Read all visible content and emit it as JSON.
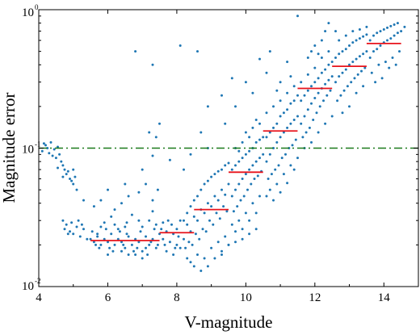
{
  "chart_data": {
    "type": "scatter",
    "xlabel": "V-magnitude",
    "ylabel": "Magnitude error",
    "xlim": [
      4,
      15
    ],
    "ylim": [
      0.01,
      1
    ],
    "yscale": "log",
    "x_ticks": [
      {
        "value": 4,
        "label": "4"
      },
      {
        "value": 6,
        "label": "6"
      },
      {
        "value": 8,
        "label": "8"
      },
      {
        "value": 10,
        "label": "10"
      },
      {
        "value": 12,
        "label": "12"
      },
      {
        "value": 14,
        "label": "14"
      }
    ],
    "y_ticks": [
      {
        "value": 1,
        "base": "10",
        "exp": "0"
      },
      {
        "value": 0.1,
        "base": "10",
        "exp": "-1"
      },
      {
        "value": 0.01,
        "base": "10",
        "exp": "-2"
      }
    ],
    "threshold_line": {
      "y": 0.1,
      "color": "#1a7a1a",
      "style": "dash-dot"
    },
    "scatter_color": "#1f77b4",
    "bin_median_color": "#e8121a",
    "bin_medians": [
      {
        "x0": 5.5,
        "x1": 7.5,
        "y": 0.0215
      },
      {
        "x0": 7.5,
        "x1": 8.5,
        "y": 0.0245
      },
      {
        "x0": 8.5,
        "x1": 9.5,
        "y": 0.036
      },
      {
        "x0": 9.5,
        "x1": 10.5,
        "y": 0.067
      },
      {
        "x0": 10.5,
        "x1": 11.5,
        "y": 0.133
      },
      {
        "x0": 11.5,
        "x1": 12.5,
        "y": 0.27
      },
      {
        "x0": 12.5,
        "x1": 13.5,
        "y": 0.39
      },
      {
        "x0": 13.5,
        "x1": 14.5,
        "y": 0.57
      }
    ],
    "points": [
      [
        4.1,
        0.095
      ],
      [
        4.2,
        0.105
      ],
      [
        4.3,
        0.092
      ],
      [
        4.35,
        0.11
      ],
      [
        4.45,
        0.098
      ],
      [
        4.5,
        0.085
      ],
      [
        4.55,
        0.102
      ],
      [
        4.6,
        0.09
      ],
      [
        4.65,
        0.08
      ],
      [
        4.7,
        0.075
      ],
      [
        4.75,
        0.07
      ],
      [
        4.8,
        0.065
      ],
      [
        4.9,
        0.06
      ],
      [
        4.95,
        0.058
      ],
      [
        5.0,
        0.055
      ],
      [
        5.05,
        0.062
      ],
      [
        5.1,
        0.05
      ],
      [
        4.4,
        0.088
      ],
      [
        4.25,
        0.1
      ],
      [
        4.15,
        0.108
      ],
      [
        4.85,
        0.068
      ],
      [
        5.0,
        0.07
      ],
      [
        4.55,
        0.072
      ],
      [
        4.7,
        0.062
      ],
      [
        4.7,
        0.03
      ],
      [
        4.75,
        0.026
      ],
      [
        4.8,
        0.028
      ],
      [
        4.9,
        0.025
      ],
      [
        5.0,
        0.024
      ],
      [
        5.1,
        0.027
      ],
      [
        5.2,
        0.023
      ],
      [
        5.3,
        0.026
      ],
      [
        5.4,
        0.022
      ],
      [
        4.85,
        0.024
      ],
      [
        5.15,
        0.03
      ],
      [
        5.25,
        0.028
      ],
      [
        4.95,
        0.029
      ],
      [
        5.5,
        0.022
      ],
      [
        5.6,
        0.021
      ],
      [
        5.7,
        0.023
      ],
      [
        5.8,
        0.02
      ],
      [
        5.9,
        0.022
      ],
      [
        6.0,
        0.021
      ],
      [
        6.1,
        0.024
      ],
      [
        6.2,
        0.02
      ],
      [
        6.3,
        0.022
      ],
      [
        6.4,
        0.021
      ],
      [
        6.5,
        0.019
      ],
      [
        6.6,
        0.023
      ],
      [
        6.7,
        0.02
      ],
      [
        6.8,
        0.022
      ],
      [
        6.9,
        0.021
      ],
      [
        7.0,
        0.018
      ],
      [
        7.1,
        0.023
      ],
      [
        7.2,
        0.02
      ],
      [
        7.3,
        0.022
      ],
      [
        7.4,
        0.019
      ],
      [
        7.5,
        0.024
      ],
      [
        5.55,
        0.025
      ],
      [
        5.75,
        0.019
      ],
      [
        5.95,
        0.026
      ],
      [
        6.15,
        0.018
      ],
      [
        6.35,
        0.025
      ],
      [
        6.55,
        0.024
      ],
      [
        6.75,
        0.018
      ],
      [
        6.95,
        0.025
      ],
      [
        7.15,
        0.017
      ],
      [
        7.35,
        0.026
      ],
      [
        5.65,
        0.02
      ],
      [
        6.05,
        0.019
      ],
      [
        6.45,
        0.02
      ],
      [
        6.85,
        0.019
      ],
      [
        7.25,
        0.021
      ],
      [
        7.45,
        0.02
      ],
      [
        6.2,
        0.028
      ],
      [
        6.5,
        0.027
      ],
      [
        6.9,
        0.03
      ],
      [
        7.2,
        0.03
      ],
      [
        5.9,
        0.029
      ],
      [
        7.4,
        0.028
      ],
      [
        6.1,
        0.032
      ],
      [
        6.7,
        0.033
      ],
      [
        7.3,
        0.035
      ],
      [
        6.3,
        0.026
      ],
      [
        6.8,
        0.017
      ],
      [
        7.0,
        0.016
      ],
      [
        6.6,
        0.017
      ],
      [
        6.0,
        0.017
      ],
      [
        5.7,
        0.024
      ],
      [
        6.4,
        0.018
      ],
      [
        7.1,
        0.019
      ],
      [
        7.0,
        0.027
      ],
      [
        6.55,
        0.029
      ],
      [
        5.8,
        0.027
      ],
      [
        7.6,
        0.022
      ],
      [
        7.7,
        0.025
      ],
      [
        7.8,
        0.021
      ],
      [
        7.9,
        0.024
      ],
      [
        8.0,
        0.026
      ],
      [
        7.65,
        0.02
      ],
      [
        7.85,
        0.028
      ],
      [
        7.95,
        0.019
      ],
      [
        8.05,
        0.023
      ],
      [
        8.1,
        0.03
      ],
      [
        7.75,
        0.03
      ],
      [
        7.55,
        0.026
      ],
      [
        8.0,
        0.02
      ],
      [
        7.9,
        0.017
      ],
      [
        7.7,
        0.018
      ],
      [
        8.1,
        0.019
      ],
      [
        7.6,
        0.029
      ],
      [
        7.5,
        0.15
      ],
      [
        7.2,
        0.13
      ],
      [
        7.4,
        0.12
      ],
      [
        7.3,
        0.088
      ],
      [
        7.0,
        0.07
      ],
      [
        6.6,
        0.045
      ],
      [
        6.4,
        0.04
      ],
      [
        7.1,
        0.055
      ],
      [
        6.5,
        0.055
      ],
      [
        6.9,
        0.048
      ],
      [
        6.0,
        0.05
      ],
      [
        5.8,
        0.042
      ],
      [
        5.3,
        0.042
      ],
      [
        5.6,
        0.038
      ],
      [
        6.2,
        0.036
      ],
      [
        7.3,
        0.042
      ],
      [
        7.45,
        0.05
      ],
      [
        8.2,
        0.022
      ],
      [
        8.3,
        0.028
      ],
      [
        8.4,
        0.025
      ],
      [
        8.5,
        0.032
      ],
      [
        8.6,
        0.03
      ],
      [
        8.7,
        0.036
      ],
      [
        8.8,
        0.034
      ],
      [
        8.9,
        0.04
      ],
      [
        9.0,
        0.038
      ],
      [
        9.1,
        0.045
      ],
      [
        9.2,
        0.042
      ],
      [
        9.3,
        0.05
      ],
      [
        9.4,
        0.046
      ],
      [
        9.5,
        0.055
      ],
      [
        8.25,
        0.019
      ],
      [
        8.35,
        0.021
      ],
      [
        8.45,
        0.02
      ],
      [
        8.55,
        0.024
      ],
      [
        8.65,
        0.022
      ],
      [
        8.75,
        0.026
      ],
      [
        8.85,
        0.025
      ],
      [
        8.95,
        0.03
      ],
      [
        9.05,
        0.028
      ],
      [
        9.15,
        0.034
      ],
      [
        9.25,
        0.031
      ],
      [
        9.35,
        0.038
      ],
      [
        9.45,
        0.035
      ],
      [
        8.2,
        0.03
      ],
      [
        8.3,
        0.034
      ],
      [
        8.4,
        0.038
      ],
      [
        8.5,
        0.042
      ],
      [
        8.6,
        0.045
      ],
      [
        8.7,
        0.05
      ],
      [
        8.8,
        0.055
      ],
      [
        8.9,
        0.058
      ],
      [
        9.0,
        0.062
      ],
      [
        9.1,
        0.065
      ],
      [
        9.2,
        0.068
      ],
      [
        9.3,
        0.07
      ],
      [
        9.4,
        0.075
      ],
      [
        9.5,
        0.078
      ],
      [
        8.4,
        0.015
      ],
      [
        8.6,
        0.017
      ],
      [
        8.8,
        0.016
      ],
      [
        9.0,
        0.019
      ],
      [
        9.2,
        0.021
      ],
      [
        9.4,
        0.023
      ],
      [
        8.5,
        0.014
      ],
      [
        8.7,
        0.013
      ],
      [
        8.9,
        0.014
      ],
      [
        9.1,
        0.016
      ],
      [
        9.3,
        0.018
      ],
      [
        9.5,
        0.02
      ],
      [
        8.3,
        0.016
      ],
      [
        9.6,
        0.045
      ],
      [
        9.7,
        0.05
      ],
      [
        9.8,
        0.055
      ],
      [
        9.9,
        0.06
      ],
      [
        10.0,
        0.065
      ],
      [
        10.1,
        0.07
      ],
      [
        10.2,
        0.075
      ],
      [
        10.3,
        0.08
      ],
      [
        10.4,
        0.085
      ],
      [
        10.5,
        0.09
      ],
      [
        9.6,
        0.07
      ],
      [
        9.7,
        0.075
      ],
      [
        9.8,
        0.08
      ],
      [
        9.9,
        0.085
      ],
      [
        10.0,
        0.09
      ],
      [
        10.1,
        0.095
      ],
      [
        10.2,
        0.1
      ],
      [
        10.3,
        0.11
      ],
      [
        10.4,
        0.115
      ],
      [
        10.5,
        0.12
      ],
      [
        9.65,
        0.035
      ],
      [
        9.75,
        0.038
      ],
      [
        9.85,
        0.042
      ],
      [
        9.95,
        0.045
      ],
      [
        10.05,
        0.05
      ],
      [
        10.15,
        0.055
      ],
      [
        10.25,
        0.06
      ],
      [
        10.35,
        0.063
      ],
      [
        10.45,
        0.068
      ],
      [
        9.6,
        0.028
      ],
      [
        9.8,
        0.03
      ],
      [
        10.0,
        0.034
      ],
      [
        10.2,
        0.04
      ],
      [
        10.4,
        0.045
      ],
      [
        9.7,
        0.025
      ],
      [
        9.9,
        0.026
      ],
      [
        10.1,
        0.03
      ],
      [
        10.3,
        0.034
      ],
      [
        10.0,
        0.13
      ],
      [
        10.2,
        0.14
      ],
      [
        10.4,
        0.15
      ],
      [
        9.9,
        0.11
      ],
      [
        9.7,
        0.1
      ],
      [
        10.3,
        0.16
      ],
      [
        10.1,
        0.12
      ],
      [
        9.8,
        0.095
      ],
      [
        9.5,
        0.02
      ],
      [
        9.7,
        0.021
      ],
      [
        9.9,
        0.022
      ],
      [
        10.1,
        0.024
      ],
      [
        10.3,
        0.026
      ],
      [
        9.3,
        0.017
      ],
      [
        10.6,
        0.08
      ],
      [
        10.7,
        0.09
      ],
      [
        10.8,
        0.1
      ],
      [
        10.9,
        0.11
      ],
      [
        11.0,
        0.12
      ],
      [
        11.1,
        0.13
      ],
      [
        11.2,
        0.14
      ],
      [
        11.3,
        0.15
      ],
      [
        11.4,
        0.16
      ],
      [
        11.5,
        0.17
      ],
      [
        10.6,
        0.12
      ],
      [
        10.7,
        0.13
      ],
      [
        10.8,
        0.14
      ],
      [
        10.9,
        0.15
      ],
      [
        11.0,
        0.17
      ],
      [
        11.1,
        0.18
      ],
      [
        11.2,
        0.19
      ],
      [
        11.3,
        0.21
      ],
      [
        11.4,
        0.22
      ],
      [
        11.5,
        0.24
      ],
      [
        10.65,
        0.06
      ],
      [
        10.75,
        0.065
      ],
      [
        10.85,
        0.07
      ],
      [
        10.95,
        0.075
      ],
      [
        11.05,
        0.085
      ],
      [
        11.15,
        0.09
      ],
      [
        11.25,
        0.1
      ],
      [
        11.35,
        0.105
      ],
      [
        11.45,
        0.115
      ],
      [
        10.6,
        0.18
      ],
      [
        10.8,
        0.2
      ],
      [
        11.0,
        0.22
      ],
      [
        11.2,
        0.25
      ],
      [
        11.4,
        0.28
      ],
      [
        10.7,
        0.05
      ],
      [
        10.9,
        0.055
      ],
      [
        11.1,
        0.065
      ],
      [
        11.3,
        0.075
      ],
      [
        11.5,
        0.085
      ],
      [
        10.6,
        0.045
      ],
      [
        10.8,
        0.042
      ],
      [
        11.0,
        0.048
      ],
      [
        11.2,
        0.056
      ],
      [
        11.4,
        0.07
      ],
      [
        11.0,
        0.3
      ],
      [
        11.3,
        0.33
      ],
      [
        10.9,
        0.26
      ],
      [
        11.6,
        0.15
      ],
      [
        11.7,
        0.17
      ],
      [
        11.8,
        0.19
      ],
      [
        11.9,
        0.21
      ],
      [
        12.0,
        0.23
      ],
      [
        12.1,
        0.25
      ],
      [
        12.2,
        0.27
      ],
      [
        12.3,
        0.29
      ],
      [
        12.4,
        0.31
      ],
      [
        12.5,
        0.33
      ],
      [
        11.6,
        0.22
      ],
      [
        11.7,
        0.24
      ],
      [
        11.8,
        0.26
      ],
      [
        11.9,
        0.28
      ],
      [
        12.0,
        0.3
      ],
      [
        12.1,
        0.32
      ],
      [
        12.2,
        0.35
      ],
      [
        12.3,
        0.37
      ],
      [
        12.4,
        0.4
      ],
      [
        12.5,
        0.42
      ],
      [
        11.65,
        0.12
      ],
      [
        11.75,
        0.13
      ],
      [
        11.85,
        0.14
      ],
      [
        11.95,
        0.16
      ],
      [
        12.05,
        0.18
      ],
      [
        12.15,
        0.2
      ],
      [
        12.25,
        0.22
      ],
      [
        12.35,
        0.24
      ],
      [
        12.45,
        0.26
      ],
      [
        11.6,
        0.3
      ],
      [
        11.8,
        0.34
      ],
      [
        12.0,
        0.38
      ],
      [
        12.2,
        0.45
      ],
      [
        12.4,
        0.5
      ],
      [
        11.7,
        0.1
      ],
      [
        11.9,
        0.11
      ],
      [
        12.1,
        0.13
      ],
      [
        12.3,
        0.15
      ],
      [
        12.5,
        0.17
      ],
      [
        12.0,
        0.55
      ],
      [
        12.2,
        0.6
      ],
      [
        12.3,
        0.7
      ],
      [
        12.4,
        0.8
      ],
      [
        11.9,
        0.5
      ],
      [
        12.1,
        0.48
      ],
      [
        11.5,
        0.9
      ],
      [
        11.8,
        0.45
      ],
      [
        12.6,
        0.3
      ],
      [
        12.7,
        0.33
      ],
      [
        12.8,
        0.35
      ],
      [
        12.9,
        0.37
      ],
      [
        13.0,
        0.4
      ],
      [
        13.1,
        0.42
      ],
      [
        13.2,
        0.44
      ],
      [
        13.3,
        0.46
      ],
      [
        13.4,
        0.48
      ],
      [
        13.5,
        0.5
      ],
      [
        12.6,
        0.45
      ],
      [
        12.7,
        0.48
      ],
      [
        12.8,
        0.5
      ],
      [
        12.9,
        0.52
      ],
      [
        13.0,
        0.55
      ],
      [
        13.1,
        0.58
      ],
      [
        13.2,
        0.6
      ],
      [
        13.3,
        0.62
      ],
      [
        13.4,
        0.64
      ],
      [
        13.5,
        0.66
      ],
      [
        12.65,
        0.22
      ],
      [
        12.75,
        0.24
      ],
      [
        12.85,
        0.26
      ],
      [
        12.95,
        0.28
      ],
      [
        13.05,
        0.3
      ],
      [
        13.15,
        0.32
      ],
      [
        13.25,
        0.34
      ],
      [
        13.35,
        0.36
      ],
      [
        13.45,
        0.38
      ],
      [
        12.7,
        0.6
      ],
      [
        12.9,
        0.65
      ],
      [
        13.1,
        0.7
      ],
      [
        13.3,
        0.72
      ],
      [
        13.0,
        0.2
      ],
      [
        13.2,
        0.25
      ],
      [
        12.8,
        0.18
      ],
      [
        13.4,
        0.28
      ],
      [
        12.6,
        0.7
      ],
      [
        13.5,
        0.75
      ],
      [
        13.6,
        0.45
      ],
      [
        13.7,
        0.5
      ],
      [
        13.8,
        0.52
      ],
      [
        13.9,
        0.55
      ],
      [
        14.0,
        0.58
      ],
      [
        14.1,
        0.6
      ],
      [
        14.2,
        0.62
      ],
      [
        14.3,
        0.65
      ],
      [
        14.4,
        0.68
      ],
      [
        14.5,
        0.7
      ],
      [
        13.6,
        0.6
      ],
      [
        13.7,
        0.65
      ],
      [
        13.8,
        0.68
      ],
      [
        13.9,
        0.7
      ],
      [
        14.0,
        0.72
      ],
      [
        14.1,
        0.74
      ],
      [
        14.2,
        0.76
      ],
      [
        14.3,
        0.78
      ],
      [
        14.4,
        0.8
      ],
      [
        14.6,
        0.75
      ],
      [
        13.65,
        0.35
      ],
      [
        13.85,
        0.4
      ],
      [
        14.05,
        0.42
      ],
      [
        14.25,
        0.45
      ],
      [
        14.45,
        0.5
      ],
      [
        13.75,
        0.3
      ],
      [
        13.95,
        0.32
      ],
      [
        14.15,
        0.38
      ],
      [
        14.35,
        0.4
      ],
      [
        6.8,
        0.5
      ],
      [
        7.3,
        0.4
      ],
      [
        8.1,
        0.55
      ],
      [
        8.6,
        0.5
      ],
      [
        9.7,
        0.2
      ],
      [
        10.7,
        0.5
      ],
      [
        11.2,
        0.42
      ],
      [
        9.6,
        0.32
      ],
      [
        10.2,
        0.25
      ],
      [
        8.9,
        0.2
      ],
      [
        9.3,
        0.24
      ],
      [
        8.7,
        0.13
      ],
      [
        8.4,
        0.09
      ],
      [
        7.8,
        0.082
      ],
      [
        8.2,
        0.07
      ],
      [
        8.9,
        0.1
      ],
      [
        9.4,
        0.15
      ],
      [
        10.0,
        0.3
      ],
      [
        10.6,
        0.35
      ],
      [
        10.4,
        0.44
      ]
    ]
  }
}
